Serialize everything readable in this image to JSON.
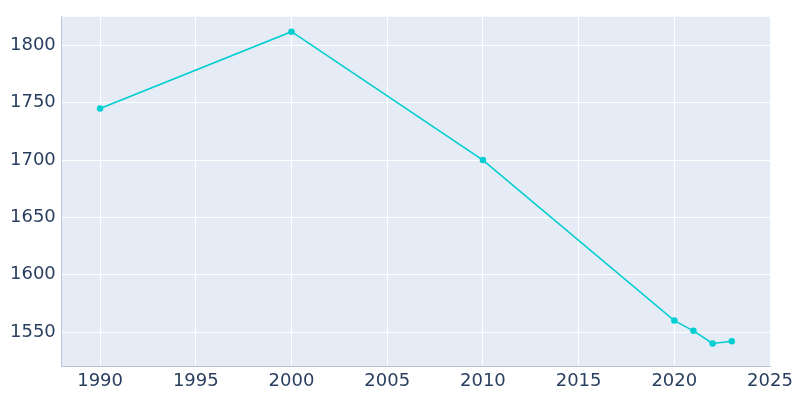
{
  "chart_data": {
    "type": "line",
    "x": [
      1990,
      2000,
      2010,
      2020,
      2021,
      2022,
      2023
    ],
    "values": [
      1745,
      1812,
      1700,
      1560,
      1551,
      1540,
      1542
    ],
    "color": "#00ced1",
    "marker": "circle",
    "xlim": [
      1988,
      2025
    ],
    "xticks": [
      1990,
      1995,
      2000,
      2005,
      2010,
      2015,
      2020,
      2025
    ],
    "ylim": [
      1520,
      1825
    ],
    "yticks": [
      1550,
      1600,
      1650,
      1700,
      1750,
      1800
    ],
    "grid": true
  }
}
